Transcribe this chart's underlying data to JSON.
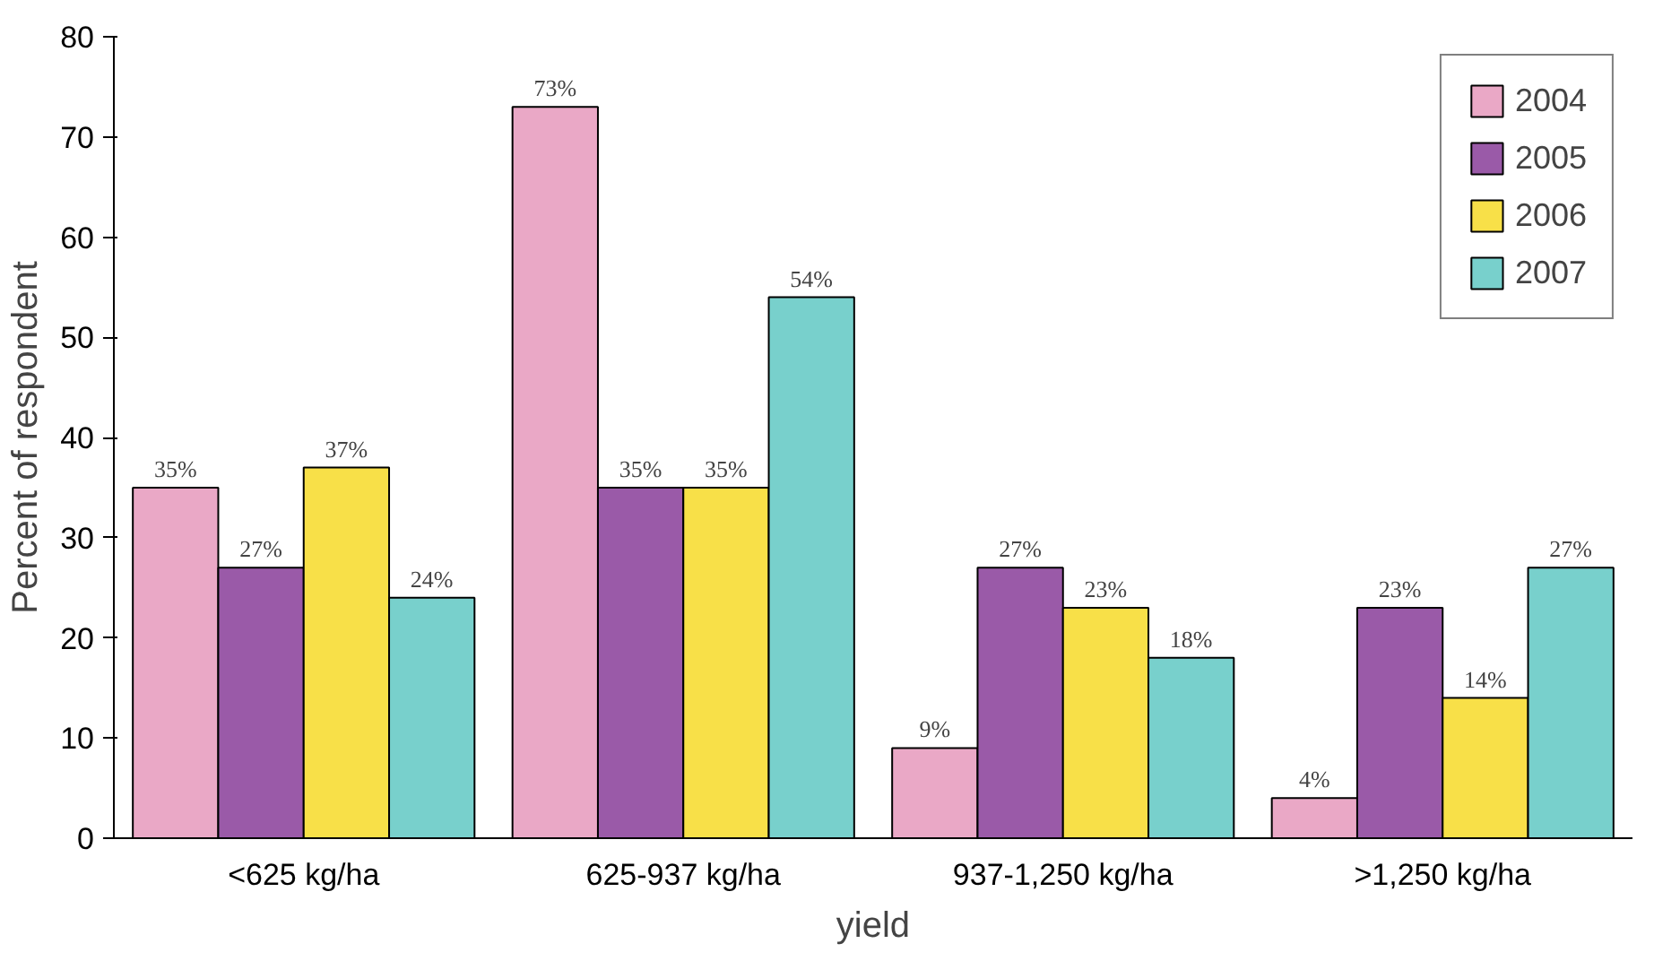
{
  "chart_data": {
    "type": "bar",
    "xlabel": "yield",
    "ylabel": "Percent of respondent",
    "categories": [
      "<625 kg/ha",
      "625-937 kg/ha",
      "937-1,250 kg/ha",
      ">1,250 kg/ha"
    ],
    "series": [
      {
        "name": "2004",
        "color": "#eaa8c6",
        "values": [
          35,
          73,
          9,
          4
        ],
        "value_labels": [
          "35%",
          "73%",
          "9%",
          "4%"
        ]
      },
      {
        "name": "2005",
        "color": "#9a5aa8",
        "values": [
          27,
          35,
          27,
          23
        ],
        "value_labels": [
          "27%",
          "35%",
          "27%",
          "23%"
        ]
      },
      {
        "name": "2006",
        "color": "#f8e048",
        "values": [
          37,
          35,
          23,
          14
        ],
        "value_labels": [
          "37%",
          "35%",
          "23%",
          "14%"
        ]
      },
      {
        "name": "2007",
        "color": "#78d0cc",
        "values": [
          24,
          54,
          18,
          27
        ],
        "value_labels": [
          "24%",
          "54%",
          "18%",
          "27%"
        ]
      }
    ],
    "ylim": [
      0,
      80
    ],
    "yticks": [
      0,
      10,
      20,
      30,
      40,
      50,
      60,
      70,
      80
    ],
    "grid": false,
    "legend": "top right"
  }
}
